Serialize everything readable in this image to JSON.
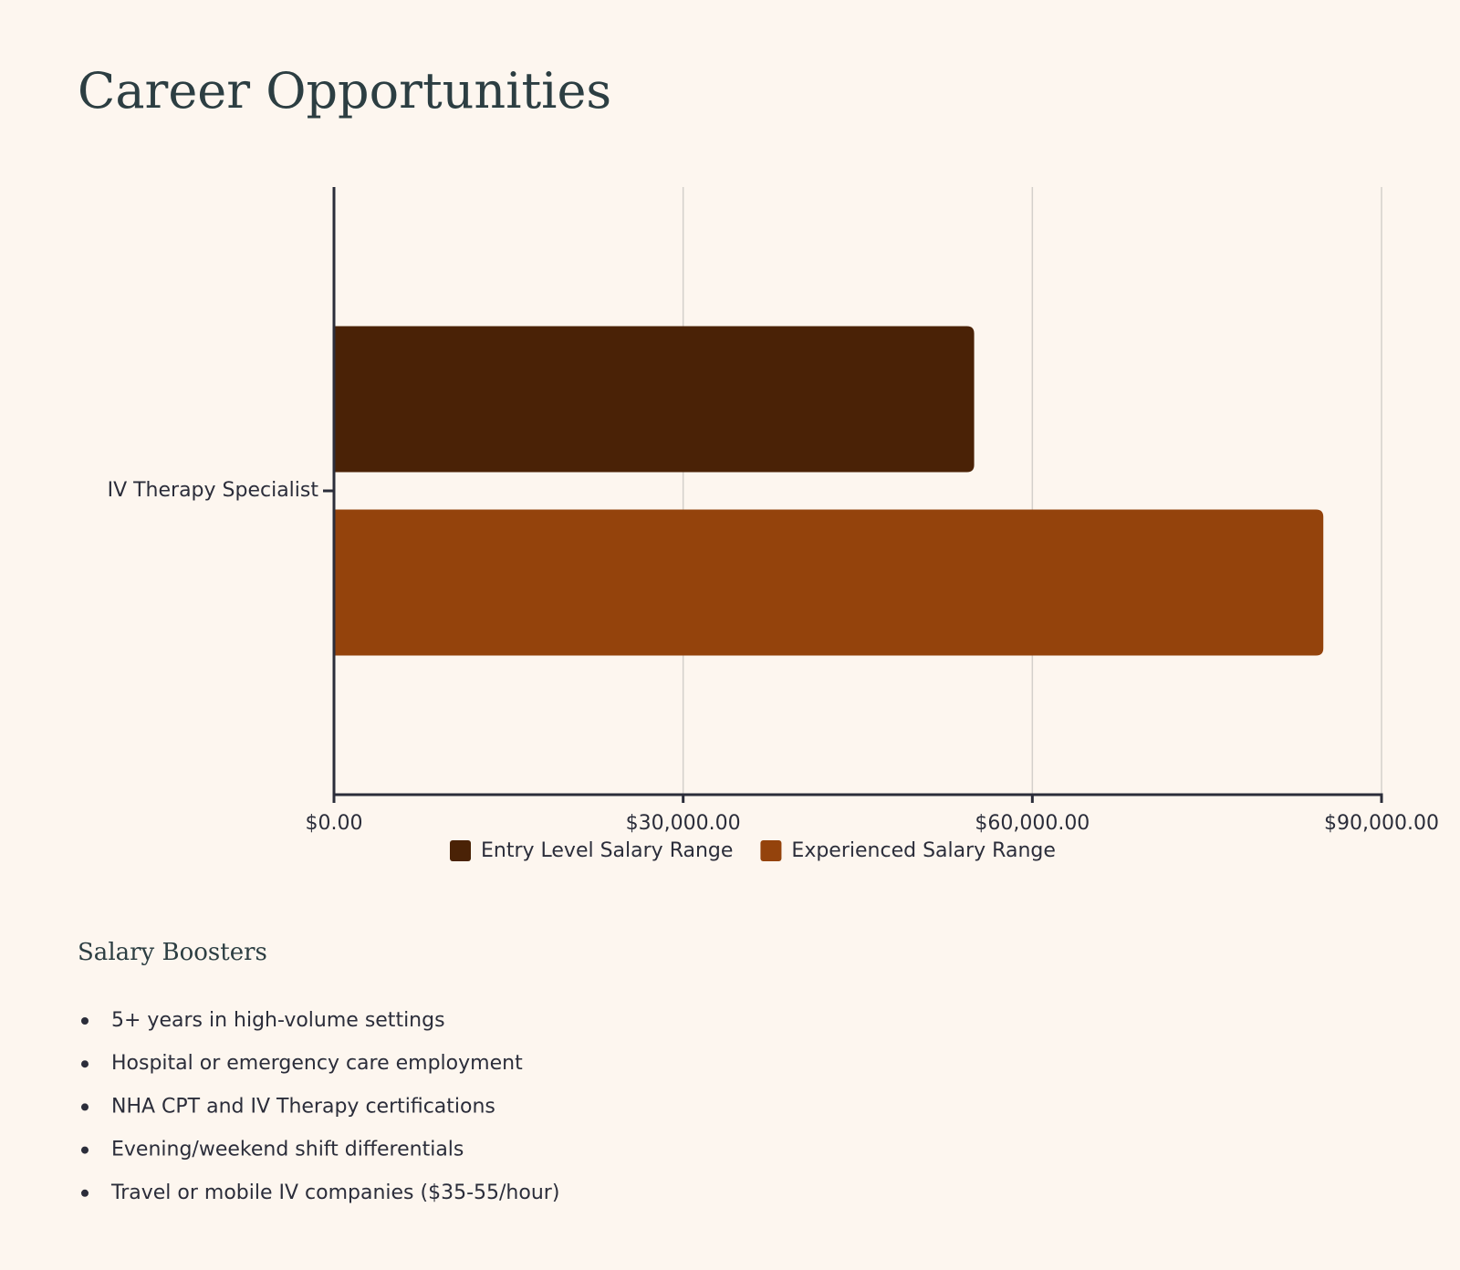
{
  "title": "Career Opportunities",
  "chart_data": {
    "type": "hbar",
    "categories": [
      "IV Therapy Specialist"
    ],
    "series": [
      {
        "name": "Entry Level Salary Range",
        "color": "#4a2206",
        "values": [
          55000
        ]
      },
      {
        "name": "Experienced Salary Range",
        "color": "#94430c",
        "values": [
          85000
        ]
      }
    ],
    "xlim": [
      0,
      90000
    ],
    "xticks": [
      {
        "value": 0,
        "label": "$0.00"
      },
      {
        "value": 30000,
        "label": "$30,000.00"
      },
      {
        "value": 60000,
        "label": "$60,000.00"
      },
      {
        "value": 90000,
        "label": "$90,000.00"
      }
    ],
    "grid": true
  },
  "boosters": {
    "heading": "Salary Boosters",
    "items": [
      "5+ years in high-volume settings",
      "Hospital or emergency care employment",
      "NHA CPT and IV Therapy certifications",
      "Evening/weekend shift differentials",
      "Travel or mobile IV companies ($35-55/hour)"
    ]
  }
}
